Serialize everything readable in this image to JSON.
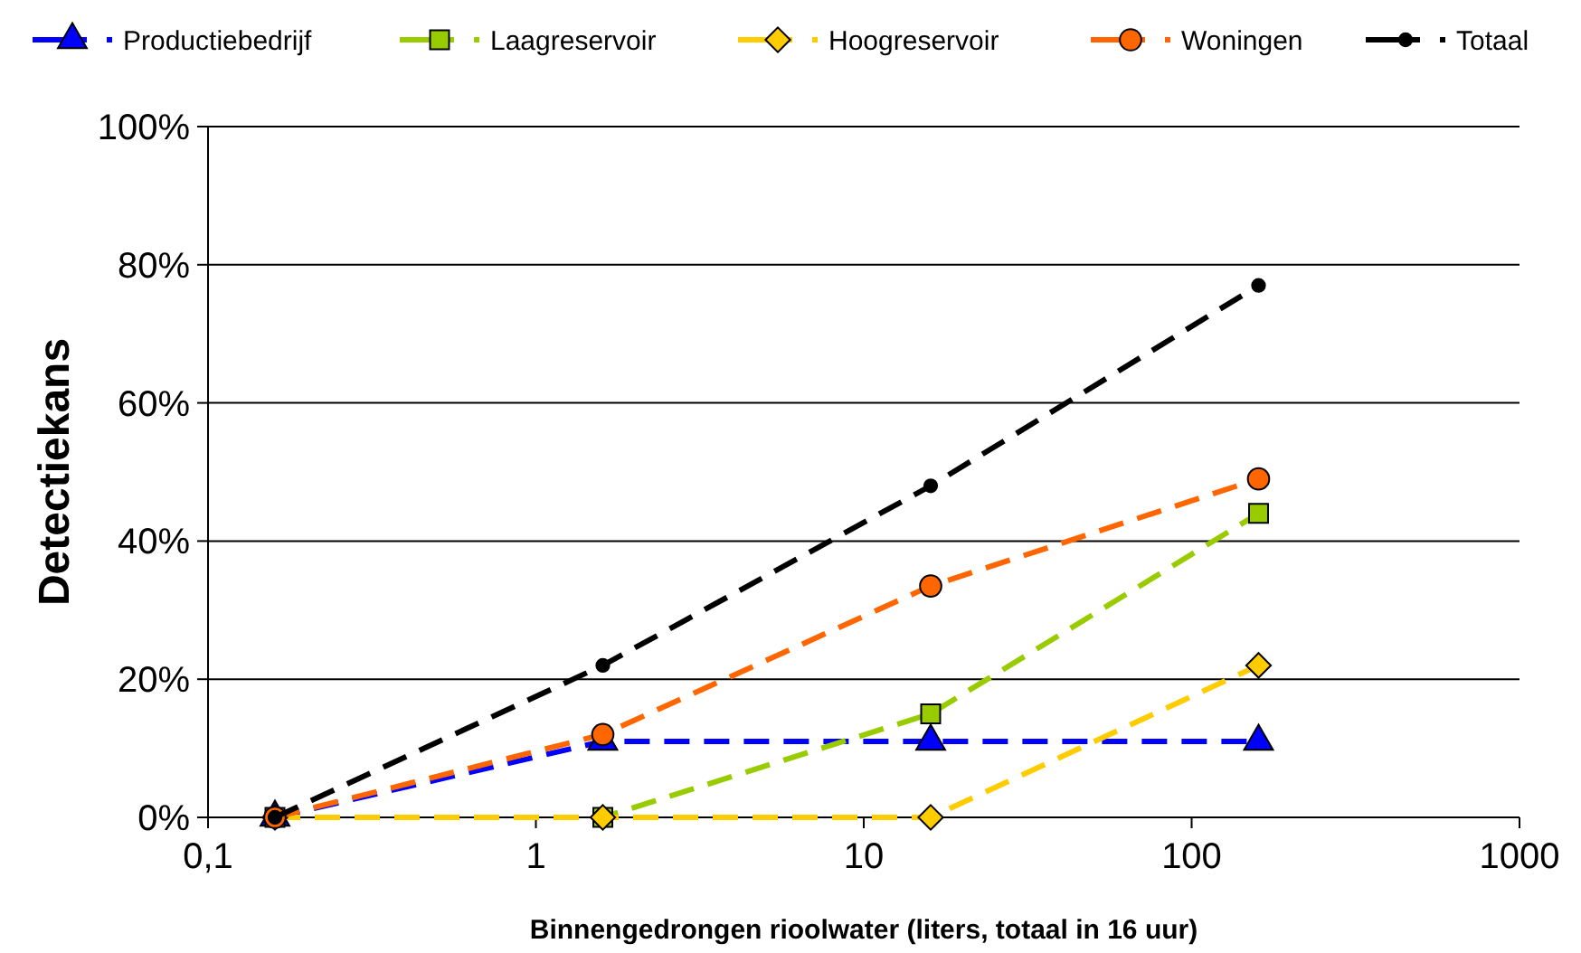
{
  "chart_data": {
    "type": "line",
    "xlabel": "Binnengedrongen rioolwater (liters, totaal in 16 uur)",
    "ylabel": "Detectiekans",
    "log": "x",
    "x": [
      0.16,
      1.6,
      16,
      160
    ],
    "xlim": [
      0.1,
      1000
    ],
    "xticks": [
      {
        "value": 0.1,
        "label": "0,1"
      },
      1,
      10,
      100,
      1000
    ],
    "ylim": [
      0,
      100
    ],
    "yticks": [
      {
        "value": 0,
        "label": "0%"
      },
      {
        "value": 20,
        "label": "20%"
      },
      {
        "value": 40,
        "label": "40%"
      },
      {
        "value": 60,
        "label": "60%"
      },
      {
        "value": 80,
        "label": "80%"
      },
      {
        "value": 100,
        "label": "100%"
      }
    ],
    "grid": "y",
    "legend": "top",
    "line_style": "dashed",
    "series": [
      {
        "name": "Productiebedrijf",
        "color": "#0000ff",
        "marker": "triangle",
        "values": [
          0,
          11,
          11,
          11
        ]
      },
      {
        "name": "Laagreservoir",
        "color": "#99cc00",
        "marker": "square",
        "values": [
          0,
          0,
          15,
          44
        ]
      },
      {
        "name": "Hoogreservoir",
        "color": "#ffcc00",
        "marker": "diamond",
        "values": [
          0,
          0,
          0,
          22
        ]
      },
      {
        "name": "Woningen",
        "color": "#ff6600",
        "marker": "circle",
        "values": [
          0,
          12,
          33.5,
          49
        ]
      },
      {
        "name": "Totaal",
        "color": "#000000",
        "marker": "circle",
        "values": [
          0,
          22,
          48,
          77
        ]
      }
    ]
  }
}
